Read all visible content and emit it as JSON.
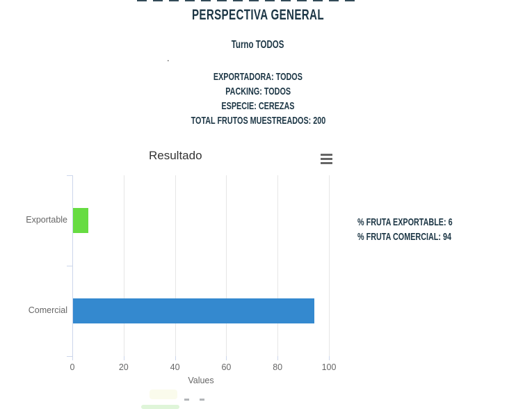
{
  "header": {
    "title": "PERSPECTIVA GENERAL",
    "subtitle": "Turno TODOS",
    "stray_dot": ".",
    "filters": [
      "EXPORTADORA: TODOS",
      "PACKING: TODOS",
      "ESPECIE: CEREZAS",
      "TOTAL FRUTOS MUESTREADOS: 200"
    ]
  },
  "chart_data": {
    "type": "bar",
    "orientation": "horizontal",
    "title": "Resultado",
    "categories": [
      "Exportable",
      "Comercial"
    ],
    "values": [
      6,
      94
    ],
    "colors": [
      "#67dc42",
      "#3489cf"
    ],
    "xlabel": "Values",
    "xlim": [
      0,
      100
    ],
    "xticks": [
      0,
      20,
      40,
      60,
      80,
      100
    ],
    "grid": true,
    "legend": false,
    "menu_icon": "hamburger-icon"
  },
  "summary": {
    "lines": [
      "% FRUTA EXPORTABLE: 6",
      "% FRUTA COMERCIAL: 94"
    ]
  },
  "colors": {
    "heading_text": "#1c3645",
    "chart_title_text": "#333333",
    "axis_text": "#666666",
    "gridline": "#e6e6e6",
    "axis_line": "#ccd6eb",
    "bar_exportable": "#67dc42",
    "bar_comercial": "#3489cf"
  }
}
